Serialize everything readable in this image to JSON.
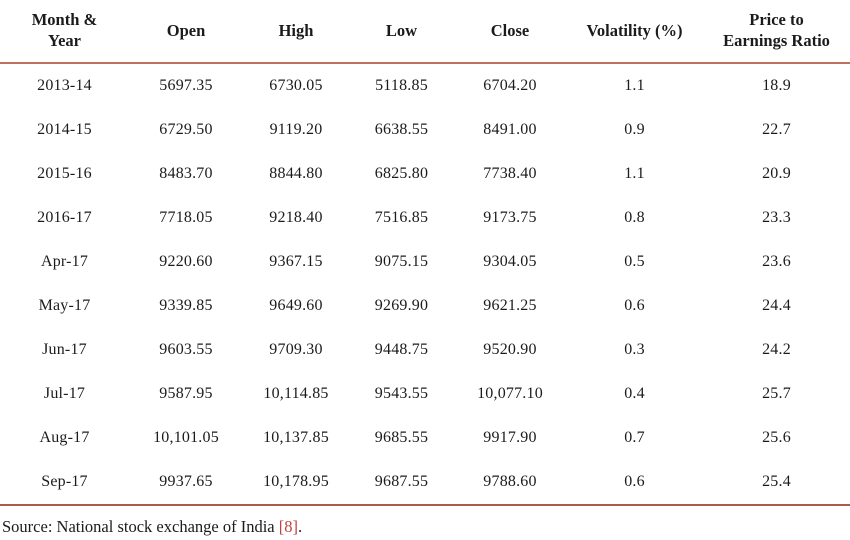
{
  "table": {
    "columns": [
      "Month & Year",
      "Open",
      "High",
      "Low",
      "Close",
      "Volatility (%)",
      "Price to Earnings Ratio"
    ],
    "rows": [
      [
        "2013-14",
        "5697.35",
        "6730.05",
        "5118.85",
        "6704.20",
        "1.1",
        "18.9"
      ],
      [
        "2014-15",
        "6729.50",
        "9119.20",
        "6638.55",
        "8491.00",
        "0.9",
        "22.7"
      ],
      [
        "2015-16",
        "8483.70",
        "8844.80",
        "6825.80",
        "7738.40",
        "1.1",
        "20.9"
      ],
      [
        "2016-17",
        "7718.05",
        "9218.40",
        "7516.85",
        "9173.75",
        "0.8",
        "23.3"
      ],
      [
        "Apr-17",
        "9220.60",
        "9367.15",
        "9075.15",
        "9304.05",
        "0.5",
        "23.6"
      ],
      [
        "May-17",
        "9339.85",
        "9649.60",
        "9269.90",
        "9621.25",
        "0.6",
        "24.4"
      ],
      [
        "Jun-17",
        "9603.55",
        "9709.30",
        "9448.75",
        "9520.90",
        "0.3",
        "24.2"
      ],
      [
        "Jul-17",
        "9587.95",
        "10,114.85",
        "9543.55",
        "10,077.10",
        "0.4",
        "25.7"
      ],
      [
        "Aug-17",
        "10,101.05",
        "10,137.85",
        "9685.55",
        "9917.90",
        "0.7",
        "25.6"
      ],
      [
        "Sep-17",
        "9937.65",
        "10,178.95",
        "9687.55",
        "9788.60",
        "0.6",
        "25.4"
      ]
    ]
  },
  "source": {
    "prefix": "Source: National stock exchange of India ",
    "citation": "[8]",
    "suffix": "."
  },
  "chart_data": {
    "type": "table",
    "columns": [
      "Month & Year",
      "Open",
      "High",
      "Low",
      "Close",
      "Volatility (%)",
      "Price to Earnings Ratio"
    ],
    "rows": [
      [
        "2013-14",
        5697.35,
        6730.05,
        5118.85,
        6704.2,
        1.1,
        18.9
      ],
      [
        "2014-15",
        6729.5,
        9119.2,
        6638.55,
        8491.0,
        0.9,
        22.7
      ],
      [
        "2015-16",
        8483.7,
        8844.8,
        6825.8,
        7738.4,
        1.1,
        20.9
      ],
      [
        "2016-17",
        7718.05,
        9218.4,
        7516.85,
        9173.75,
        0.8,
        23.3
      ],
      [
        "Apr-17",
        9220.6,
        9367.15,
        9075.15,
        9304.05,
        0.5,
        23.6
      ],
      [
        "May-17",
        9339.85,
        9649.6,
        9269.9,
        9621.25,
        0.6,
        24.4
      ],
      [
        "Jun-17",
        9603.55,
        9709.3,
        9448.75,
        9520.9,
        0.3,
        24.2
      ],
      [
        "Jul-17",
        9587.95,
        10114.85,
        9543.55,
        10077.1,
        0.4,
        25.7
      ],
      [
        "Aug-17",
        10101.05,
        10137.85,
        9685.55,
        9917.9,
        0.7,
        25.6
      ],
      [
        "Sep-17",
        9937.65,
        10178.95,
        9687.55,
        9788.6,
        0.6,
        25.4
      ]
    ]
  },
  "colors": {
    "header_rule": "#bb7160",
    "bottom_rule": "#a85c49",
    "citation_red": "#bf4341",
    "text": "#1b1b1b"
  }
}
